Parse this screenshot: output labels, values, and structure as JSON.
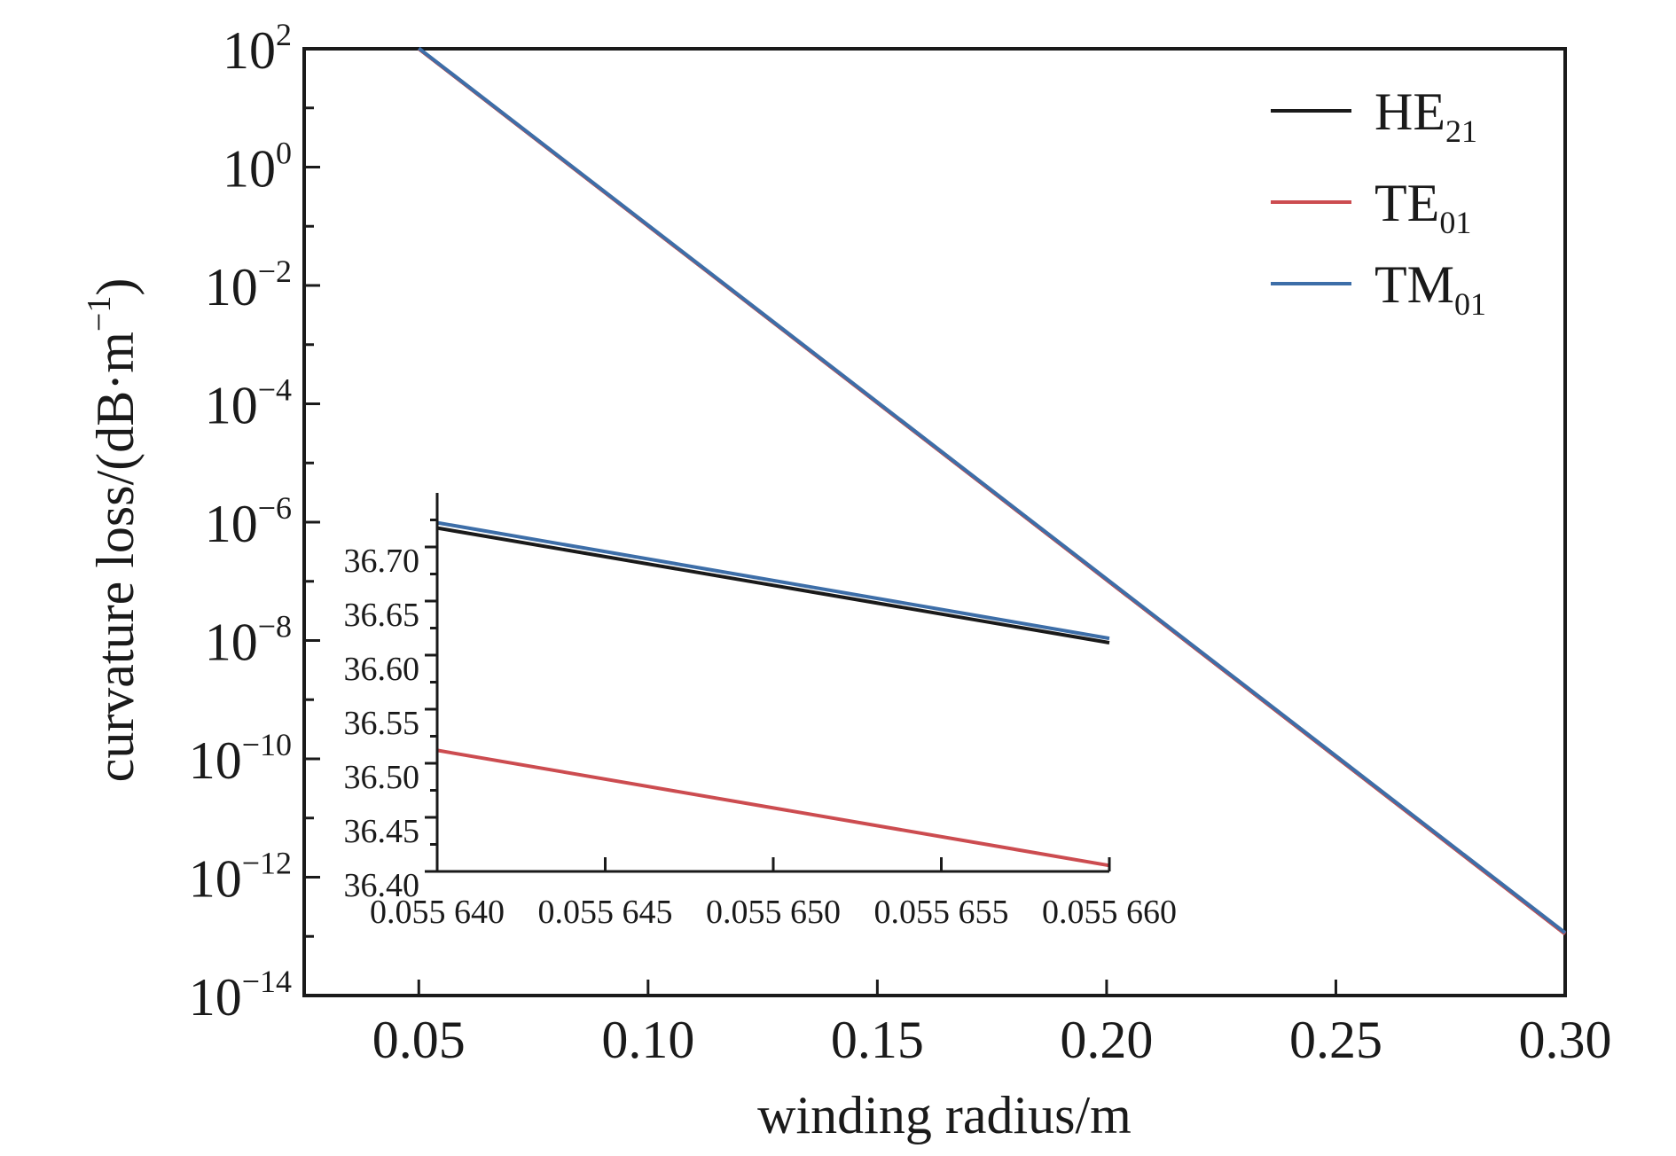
{
  "chart_data": [
    {
      "type": "line",
      "role": "main",
      "title": "",
      "xlabel": "winding radius/m",
      "ylabel": "curvature loss/(dB·m⁻¹)",
      "ylabel_parts": {
        "before": "curvature loss/(dB·m",
        "sup": "−1",
        "after": ")"
      },
      "xscale": "linear",
      "yscale": "log",
      "xlim": [
        0.025,
        0.3
      ],
      "ylim": [
        1e-14,
        100.0
      ],
      "xticks": [
        0.05,
        0.1,
        0.15,
        0.2,
        0.25,
        0.3
      ],
      "xtick_labels": [
        "0.05",
        "0.10",
        "0.15",
        "0.20",
        "0.25",
        "0.30"
      ],
      "yticks": [
        100.0,
        1.0,
        0.01,
        0.0001,
        1e-06,
        1e-08,
        1e-10,
        1e-12,
        1e-14
      ],
      "ytick_labels": [
        {
          "base": "10",
          "exp": "2"
        },
        {
          "base": "10",
          "exp": "0"
        },
        {
          "base": "10",
          "exp": "−2"
        },
        {
          "base": "10",
          "exp": "−4"
        },
        {
          "base": "10",
          "exp": "−6"
        },
        {
          "base": "10",
          "exp": "−8"
        },
        {
          "base": "10",
          "exp": "−10"
        },
        {
          "base": "10",
          "exp": "−12"
        },
        {
          "base": "10",
          "exp": "−14"
        }
      ],
      "grid": false,
      "legend_position": "top-right",
      "series": [
        {
          "name": "HE21",
          "label_main": "HE",
          "label_sub": "21",
          "color": "#1a1a1a",
          "x": [
            0.05,
            0.3
          ],
          "y": [
            100.0,
            1.1e-13
          ]
        },
        {
          "name": "TE01",
          "label_main": "TE",
          "label_sub": "01",
          "color": "#cc4c50",
          "x": [
            0.05,
            0.3
          ],
          "y": [
            100.0,
            1.1e-13
          ]
        },
        {
          "name": "TM01",
          "label_main": "TM",
          "label_sub": "01",
          "color": "#3d6ea8",
          "x": [
            0.05,
            0.3
          ],
          "y": [
            102.0,
            1.15e-13
          ]
        }
      ]
    },
    {
      "type": "line",
      "role": "inset",
      "xlabel": "",
      "ylabel": "",
      "xlim": [
        0.05564,
        0.05566
      ],
      "ylim": [
        36.4,
        36.75
      ],
      "xticks": [
        0.05564,
        0.055645,
        0.05565,
        0.055655,
        0.05566
      ],
      "xtick_labels": [
        "0.055 640",
        "0.055 645",
        "0.055 650",
        "0.055 655",
        "0.055 660"
      ],
      "yticks": [
        36.4,
        36.45,
        36.5,
        36.55,
        36.6,
        36.65,
        36.7
      ],
      "ytick_labels": [
        "36.40",
        "36.45",
        "36.50",
        "36.55",
        "36.60",
        "36.65",
        "36.70"
      ],
      "grid": false,
      "series": [
        {
          "name": "HE21",
          "color": "#1a1a1a",
          "x": [
            0.05564,
            0.05566
          ],
          "y": [
            36.7175,
            36.6115
          ]
        },
        {
          "name": "TE01",
          "color": "#cc4c50",
          "x": [
            0.05564,
            0.05566
          ],
          "y": [
            36.512,
            36.4055
          ]
        },
        {
          "name": "TM01",
          "color": "#3d6ea8",
          "x": [
            0.05564,
            0.05566
          ],
          "y": [
            36.7225,
            36.6155
          ]
        }
      ]
    }
  ]
}
